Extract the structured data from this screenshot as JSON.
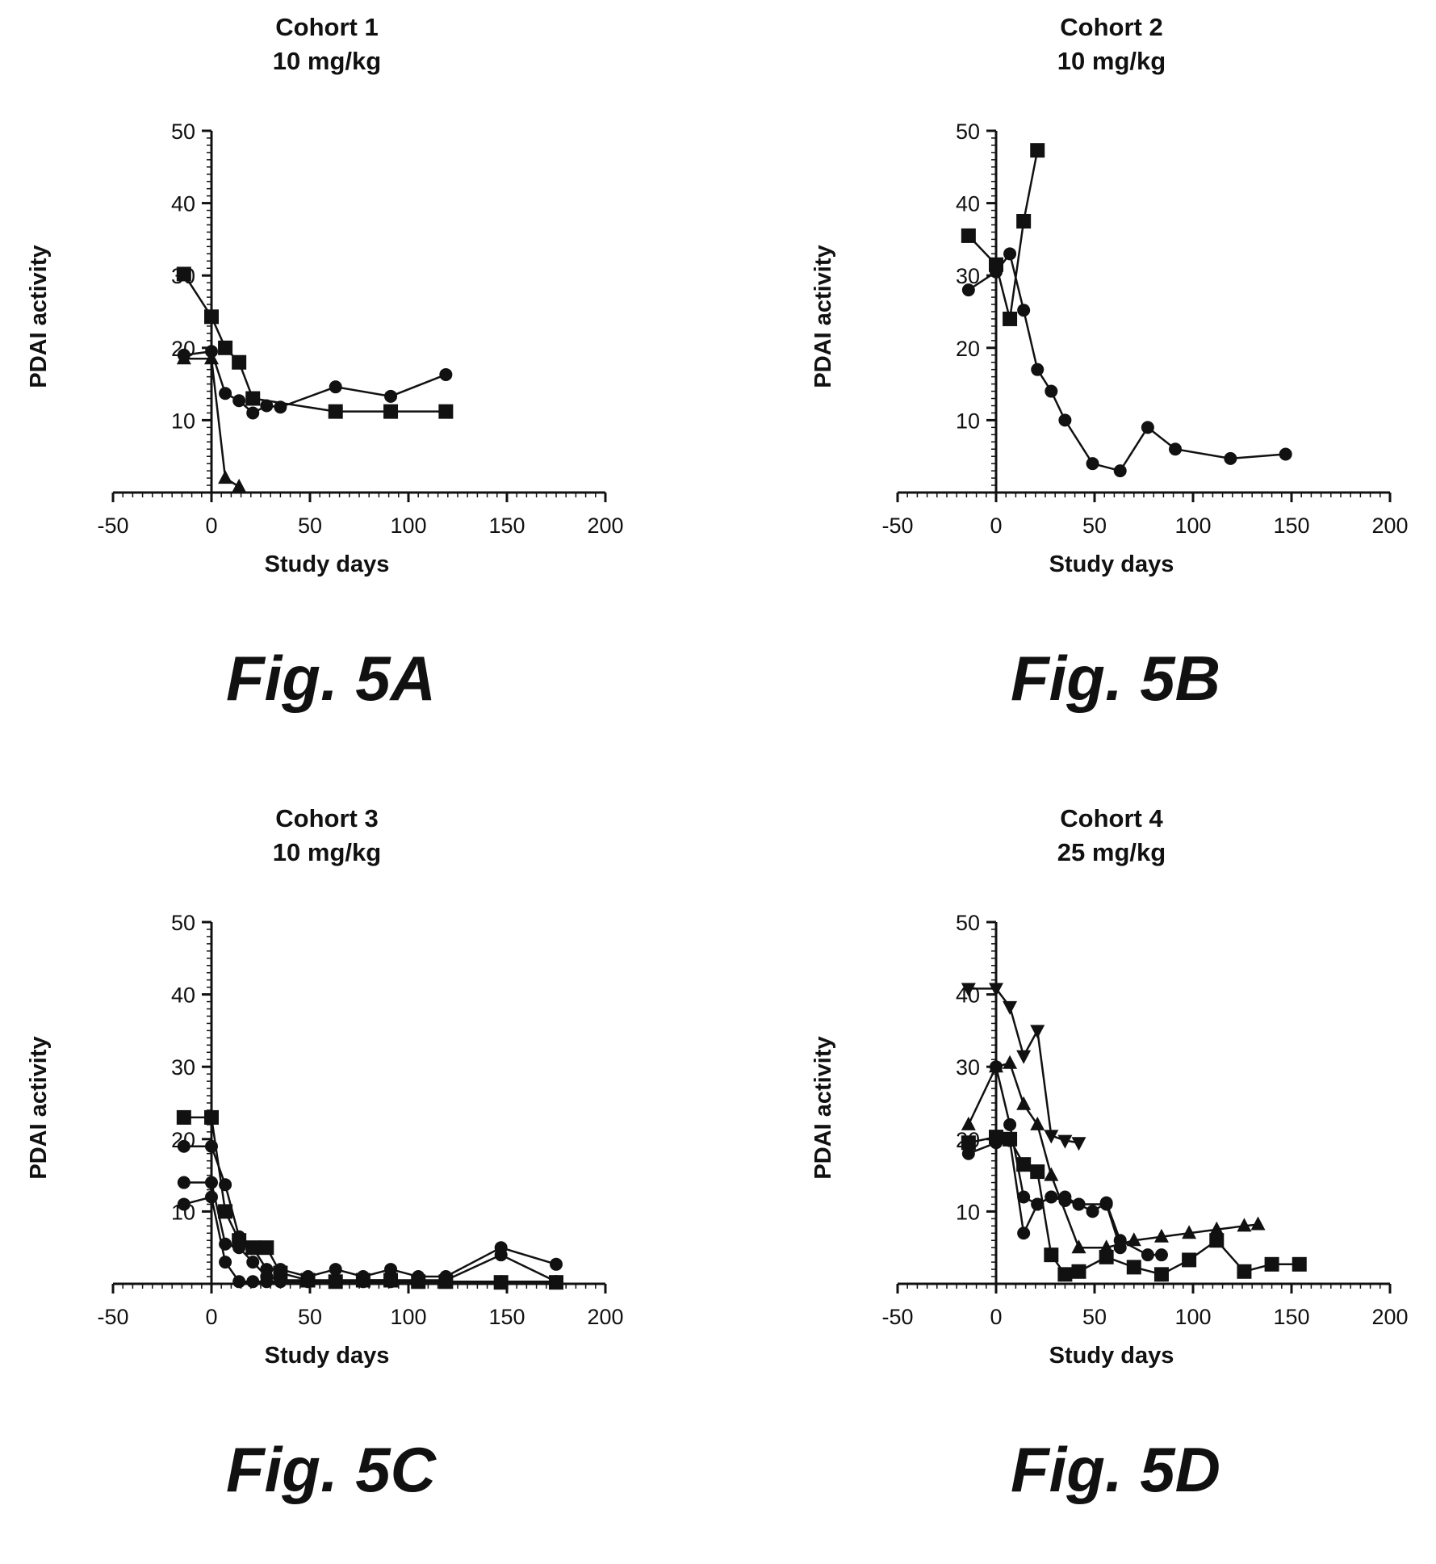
{
  "chart_data": [
    {
      "type": "line",
      "title": "Cohort 1",
      "subtitle": "10 mg/kg",
      "caption": "Fig. 5A",
      "xlabel": "Study days",
      "ylabel": "PDAI activity",
      "xlim": [
        -50,
        200
      ],
      "ylim": [
        0,
        50
      ],
      "xticks": [
        "-50",
        "0",
        "50",
        "100",
        "150",
        "200"
      ],
      "yticks": [
        "10",
        "20",
        "30",
        "40",
        "50"
      ],
      "series": [
        {
          "marker": "square",
          "x": [
            -14,
            0,
            7,
            14,
            21,
            63,
            91,
            119
          ],
          "y": [
            30.2,
            24.3,
            20,
            18,
            13,
            11.2,
            11.2,
            11.2
          ]
        },
        {
          "marker": "circle",
          "x": [
            -14,
            0,
            7,
            14,
            21,
            28,
            35,
            63,
            91,
            119
          ],
          "y": [
            19,
            19.5,
            13.7,
            12.7,
            11,
            12,
            11.8,
            14.6,
            13.3,
            16.3
          ]
        },
        {
          "marker": "triangle",
          "x": [
            -14,
            0,
            7,
            14
          ],
          "y": [
            18.5,
            18.5,
            2,
            0.8
          ]
        }
      ]
    },
    {
      "type": "line",
      "title": "Cohort 2",
      "subtitle": "10 mg/kg",
      "caption": "Fig. 5B",
      "xlabel": "Study days",
      "ylabel": "PDAI activity",
      "xlim": [
        -50,
        200
      ],
      "ylim": [
        0,
        50
      ],
      "xticks": [
        "-50",
        "0",
        "50",
        "100",
        "150",
        "200"
      ],
      "yticks": [
        "10",
        "20",
        "30",
        "40",
        "50"
      ],
      "series": [
        {
          "marker": "square",
          "x": [
            -14,
            0,
            7,
            14,
            21
          ],
          "y": [
            35.5,
            31.5,
            24,
            37.5,
            47.3
          ]
        },
        {
          "marker": "circle",
          "x": [
            -14,
            0,
            7,
            14,
            21,
            28,
            35,
            49,
            63,
            77,
            91,
            119,
            147
          ],
          "y": [
            28,
            30.5,
            33,
            25.2,
            17,
            14,
            10,
            4,
            3,
            9,
            6,
            4.7,
            5.3
          ]
        }
      ]
    },
    {
      "type": "line",
      "title": "Cohort 3",
      "subtitle": "10 mg/kg",
      "caption": "Fig. 5C",
      "xlabel": "Study days",
      "ylabel": "PDAI activity",
      "xlim": [
        -50,
        200
      ],
      "ylim": [
        0,
        50
      ],
      "xticks": [
        "-50",
        "0",
        "50",
        "100",
        "150",
        "200"
      ],
      "yticks": [
        "10",
        "20",
        "30",
        "40",
        "50"
      ],
      "series": [
        {
          "marker": "square",
          "x": [
            -14,
            0,
            7,
            14,
            21,
            28,
            35,
            49,
            63,
            77,
            91,
            105,
            119,
            147,
            175
          ],
          "y": [
            23,
            23,
            10,
            6,
            5,
            5,
            1.5,
            0.5,
            0.3,
            0.5,
            0.5,
            0.3,
            0.3,
            0.2,
            0.2
          ]
        },
        {
          "marker": "circle",
          "x": [
            -14,
            0,
            7,
            14,
            21,
            28,
            35,
            49,
            63,
            77,
            91,
            105,
            119,
            147,
            175
          ],
          "y": [
            19,
            19,
            13.7,
            6.5,
            5,
            2,
            2,
            1,
            2,
            1,
            2,
            1,
            1,
            5,
            2.7
          ]
        },
        {
          "marker": "circle",
          "x": [
            -14,
            0,
            7,
            14,
            21,
            28,
            35,
            49,
            63,
            77,
            91,
            105,
            119,
            147,
            175
          ],
          "y": [
            14,
            14,
            5.5,
            5,
            3,
            1,
            0.5,
            0.5,
            0.5,
            0.5,
            0.5,
            0.5,
            0.5,
            4,
            0.3
          ]
        },
        {
          "marker": "circle",
          "x": [
            -14,
            0,
            7,
            14,
            21,
            28,
            35,
            49,
            63,
            77,
            91,
            105,
            119,
            147,
            175
          ],
          "y": [
            11,
            12,
            3,
            0.3,
            0.3,
            0.3,
            0.3,
            0.3,
            0.3,
            0.3,
            0.3,
            0.3,
            0.3,
            0.3,
            0.3
          ]
        }
      ]
    },
    {
      "type": "line",
      "title": "Cohort 4",
      "subtitle": "25 mg/kg",
      "caption": "Fig. 5D",
      "xlabel": "Study days",
      "ylabel": "PDAI activity",
      "xlim": [
        -50,
        200
      ],
      "ylim": [
        0,
        50
      ],
      "xticks": [
        "-50",
        "0",
        "50",
        "100",
        "150",
        "200"
      ],
      "yticks": [
        "10",
        "20",
        "30",
        "40",
        "50"
      ],
      "series": [
        {
          "marker": "triangle-down",
          "x": [
            -14,
            0,
            7,
            14,
            21,
            28,
            35,
            42
          ],
          "y": [
            40.8,
            40.8,
            38.3,
            31.5,
            35,
            20.5,
            19.8,
            19.5
          ]
        },
        {
          "marker": "triangle",
          "x": [
            -14,
            0,
            7,
            14,
            21,
            28,
            42,
            56,
            70,
            84,
            98,
            112,
            126,
            133
          ],
          "y": [
            22,
            30,
            30.5,
            24.8,
            22,
            15,
            5,
            5,
            6,
            6.5,
            7,
            7.5,
            8,
            8.2
          ]
        },
        {
          "marker": "square",
          "x": [
            -14,
            0,
            7,
            14,
            21,
            28,
            35,
            42,
            56,
            70,
            84,
            98,
            112,
            126,
            140,
            154
          ],
          "y": [
            19.5,
            20.3,
            20,
            16.5,
            15.5,
            4,
            1.3,
            1.7,
            3.7,
            2.3,
            1.3,
            3.3,
            6,
            1.7,
            2.7,
            2.7
          ]
        },
        {
          "marker": "circle",
          "x": [
            -14,
            0,
            7,
            14,
            21,
            28,
            35,
            42,
            49,
            56,
            63,
            77,
            84
          ],
          "y": [
            18,
            19.5,
            19.8,
            7,
            11,
            12,
            12,
            11,
            10,
            11.2,
            6,
            4,
            4
          ]
        },
        {
          "marker": "circle",
          "x": [
            0,
            7,
            14,
            21,
            28,
            35,
            42,
            56,
            63
          ],
          "y": [
            30,
            22,
            12,
            11,
            12,
            11.5,
            11,
            11,
            5
          ]
        }
      ]
    }
  ]
}
